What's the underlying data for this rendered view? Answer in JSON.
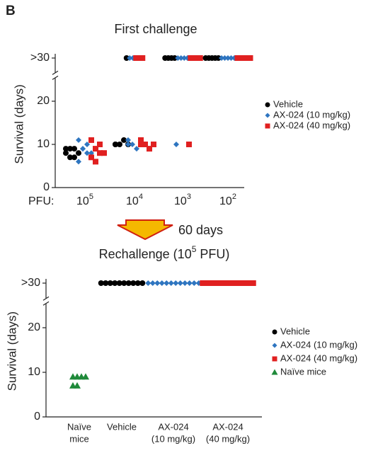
{
  "panel_label": "B",
  "chart_data": [
    {
      "type": "scatter",
      "title": [
        "First challenge"
      ],
      "ylabel": "Survival (days)",
      "xlabel": "PFU:",
      "categories": [
        [
          "10",
          "5"
        ],
        [
          "10",
          "4"
        ],
        [
          "10",
          "3"
        ],
        [
          "10",
          "2"
        ]
      ],
      "ylim": [
        0,
        32
      ],
      "yticks": [
        0,
        10,
        20,
        {
          "value": 30,
          "label": ">30"
        }
      ],
      "legend": "right",
      "series": [
        {
          "name": "Vehicle",
          "color": "#000000",
          "marker": "circle",
          "values": [
            [
              9,
              9,
              9,
              8,
              8,
              7,
              7
            ],
            [
              10,
              10,
              11,
              10,
              10,
              30
            ],
            [
              30,
              30,
              30,
              30
            ],
            [
              30,
              30,
              30,
              30,
              30
            ]
          ]
        },
        {
          "name": "AX-024 (10 mg/kg)",
          "color": "#2e75c0",
          "marker": "diamond",
          "values": [
            [
              11,
              9,
              8,
              8,
              6,
              9,
              10
            ],
            [
              11,
              10,
              9,
              11,
              10,
              30,
              30
            ],
            [
              10,
              30,
              30,
              30,
              30
            ],
            [
              30,
              30,
              30,
              30,
              30
            ]
          ]
        },
        {
          "name": "AX-024 (40 mg/kg)",
          "color": "#e02020",
          "marker": "square",
          "values": [
            [
              11,
              9,
              10,
              8,
              7,
              6,
              8
            ],
            [
              11,
              10,
              9,
              10,
              10,
              30,
              30,
              30
            ],
            [
              10,
              30,
              30,
              30,
              30
            ],
            [
              30,
              30,
              30,
              30,
              30
            ]
          ]
        }
      ]
    },
    {
      "type": "scatter",
      "title": [
        "Rechallenge (10",
        "5",
        " PFU)"
      ],
      "annotation": "60 days",
      "ylabel": "Survival (days)",
      "categories": [
        [
          "Naïve",
          "mice"
        ],
        [
          "Vehicle"
        ],
        [
          "AX-024",
          "(10 mg/kg)"
        ],
        [
          "AX-024",
          "(40 mg/kg)"
        ]
      ],
      "ylim": [
        0,
        32
      ],
      "yticks": [
        0,
        10,
        20,
        {
          "value": 30,
          "label": ">30"
        }
      ],
      "legend": "right",
      "series": [
        {
          "name": "Vehicle",
          "color": "#000000",
          "marker": "circle",
          "values": [
            [],
            [
              30,
              30,
              30,
              30,
              30,
              30,
              30,
              30,
              30,
              30
            ],
            [],
            []
          ]
        },
        {
          "name": "AX-024 (10 mg/kg)",
          "color": "#2e75c0",
          "marker": "diamond",
          "values": [
            [],
            [],
            [
              30,
              30,
              30,
              30,
              30,
              30,
              30,
              30,
              30,
              30,
              30,
              30
            ],
            []
          ]
        },
        {
          "name": "AX-024 (40 mg/kg)",
          "color": "#e02020",
          "marker": "square",
          "values": [
            [],
            [],
            [],
            [
              30,
              30,
              30,
              30,
              30,
              30,
              30,
              30,
              30,
              30,
              30,
              30
            ]
          ]
        },
        {
          "name": "Naïve mice",
          "color": "#1f8a3a",
          "marker": "triangle",
          "values": [
            [
              9,
              9,
              9,
              9,
              7,
              7
            ],
            [],
            [],
            []
          ]
        }
      ]
    }
  ]
}
